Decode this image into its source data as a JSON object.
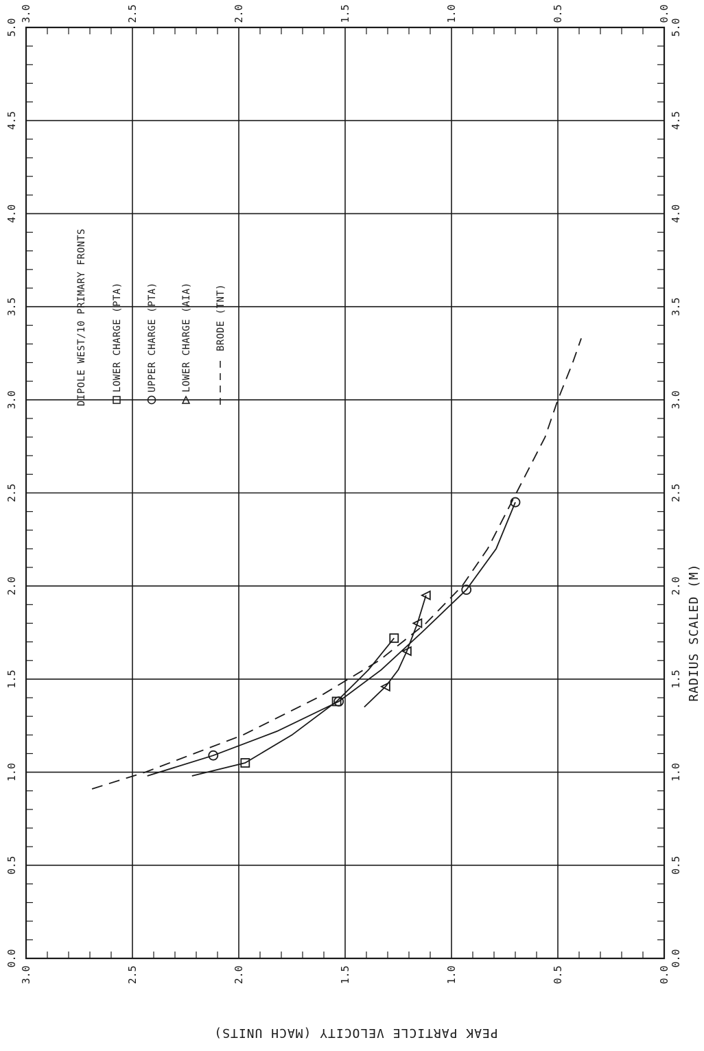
{
  "chart_data": {
    "type": "scatter",
    "title": "DIPOLE WEST/10 PRIMARY FRONTS",
    "xlabel": "RADIUS SCALED (M)",
    "ylabel": "PEAK PARTICLE VELOCITY (MACH UNITS)",
    "xlim": [
      0,
      5
    ],
    "ylim": [
      0,
      3
    ],
    "x_ticks": [
      "0.0",
      "0.5",
      "1.0",
      "1.5",
      "2.0",
      "2.5",
      "3.0",
      "3.5",
      "4.0",
      "4.5",
      "5.0"
    ],
    "y_ticks": [
      "0.0",
      "0.5",
      "1.0",
      "1.5",
      "2.0",
      "2.5",
      "3.0"
    ],
    "grid": true,
    "orientation": "rotated 90 degrees",
    "legend_position": "top-left",
    "series": [
      {
        "name": "LOWER CHARGE (PTA)",
        "marker": "square",
        "points": [
          [
            1.05,
            1.97
          ],
          [
            1.38,
            1.54
          ],
          [
            1.72,
            1.27
          ]
        ],
        "fit": [
          [
            0.98,
            2.22
          ],
          [
            1.05,
            1.97
          ],
          [
            1.2,
            1.75
          ],
          [
            1.38,
            1.54
          ],
          [
            1.55,
            1.39
          ],
          [
            1.72,
            1.27
          ]
        ]
      },
      {
        "name": "UPPER CHARGE (PTA)",
        "marker": "circle",
        "points": [
          [
            1.09,
            2.12
          ],
          [
            1.38,
            1.53
          ],
          [
            1.98,
            0.93
          ],
          [
            2.45,
            0.7
          ]
        ],
        "fit": [
          [
            0.98,
            2.43
          ],
          [
            1.09,
            2.12
          ],
          [
            1.22,
            1.82
          ],
          [
            1.38,
            1.53
          ],
          [
            1.55,
            1.33
          ],
          [
            1.75,
            1.14
          ],
          [
            1.98,
            0.93
          ],
          [
            2.2,
            0.79
          ],
          [
            2.45,
            0.7
          ]
        ]
      },
      {
        "name": "LOWER CHARGE (AIA)",
        "marker": "triangle",
        "points": [
          [
            1.46,
            1.31
          ],
          [
            1.65,
            1.21
          ],
          [
            1.8,
            1.16
          ],
          [
            1.95,
            1.12
          ]
        ],
        "fit": [
          [
            1.35,
            1.41
          ],
          [
            1.46,
            1.31
          ],
          [
            1.55,
            1.25
          ],
          [
            1.65,
            1.21
          ],
          [
            1.8,
            1.16
          ],
          [
            1.95,
            1.12
          ]
        ]
      },
      {
        "name": "BRODE (TNT)",
        "marker": "dashed-line",
        "curve": [
          [
            0.91,
            2.69
          ],
          [
            1.0,
            2.44
          ],
          [
            1.2,
            1.98
          ],
          [
            1.4,
            1.63
          ],
          [
            1.6,
            1.34
          ],
          [
            1.8,
            1.12
          ],
          [
            2.0,
            0.95
          ],
          [
            2.2,
            0.83
          ],
          [
            2.4,
            0.74
          ],
          [
            2.6,
            0.65
          ],
          [
            2.8,
            0.56
          ],
          [
            3.0,
            0.5
          ],
          [
            3.2,
            0.43
          ],
          [
            3.33,
            0.39
          ]
        ]
      }
    ]
  }
}
